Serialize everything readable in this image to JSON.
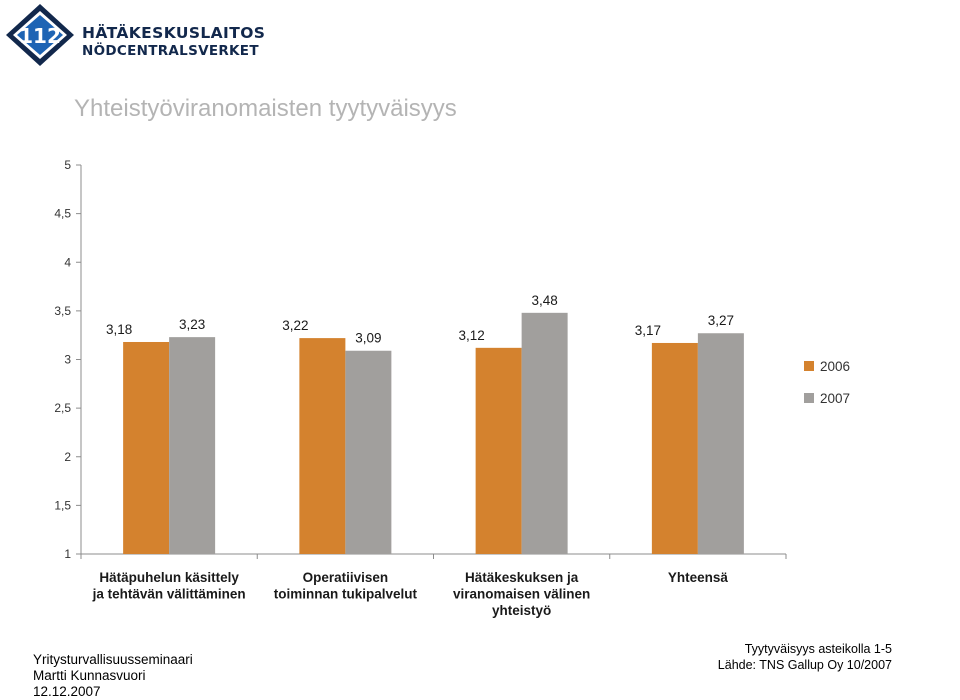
{
  "logo": {
    "number": "112",
    "line1": "HÄTÄKESKUSLAITOS",
    "line2": "NÖDCENTRALSVERKET",
    "colors": {
      "navy": "#12284c",
      "blue": "#1e64b4"
    }
  },
  "title": "Yhteistyöviranomaisten tyytyväisyys",
  "chart_data": {
    "type": "bar",
    "title": "Yhteistyöviranomaisten tyytyväisyys",
    "xlabel": "",
    "ylabel": "",
    "ylim": [
      1,
      5
    ],
    "yticks": [
      "1",
      "1,5",
      "2",
      "2,5",
      "3",
      "3,5",
      "4",
      "4,5",
      "5"
    ],
    "categories": [
      [
        "Hätäpuhelun käsittely",
        "ja tehtävän välittäminen"
      ],
      [
        "Operatiivisen",
        "toiminnan tukipalvelut"
      ],
      [
        "Hätäkeskuksen ja",
        "viranomaisen välinen",
        "yhteistyö"
      ],
      [
        "Yhteensä"
      ]
    ],
    "series": [
      {
        "name": "2006",
        "color": "#d4822e",
        "values": [
          3.18,
          3.22,
          3.12,
          3.17
        ],
        "labels": [
          "3,18",
          "3,22",
          "3,12",
          "3,17"
        ]
      },
      {
        "name": "2007",
        "color": "#a19f9d",
        "values": [
          3.23,
          3.09,
          3.48,
          3.27
        ],
        "labels": [
          "3,23",
          "3,09",
          "3,48",
          "3,27"
        ]
      }
    ],
    "legend_position": "right",
    "grid": false
  },
  "footer": {
    "left": [
      "Yritysturvallisuusseminaari",
      "Martti Kunnasvuori",
      "12.12.2007"
    ],
    "right": [
      "Tyytyväisyys asteikolla 1-5",
      "Lähde: TNS Gallup Oy 10/2007"
    ]
  }
}
